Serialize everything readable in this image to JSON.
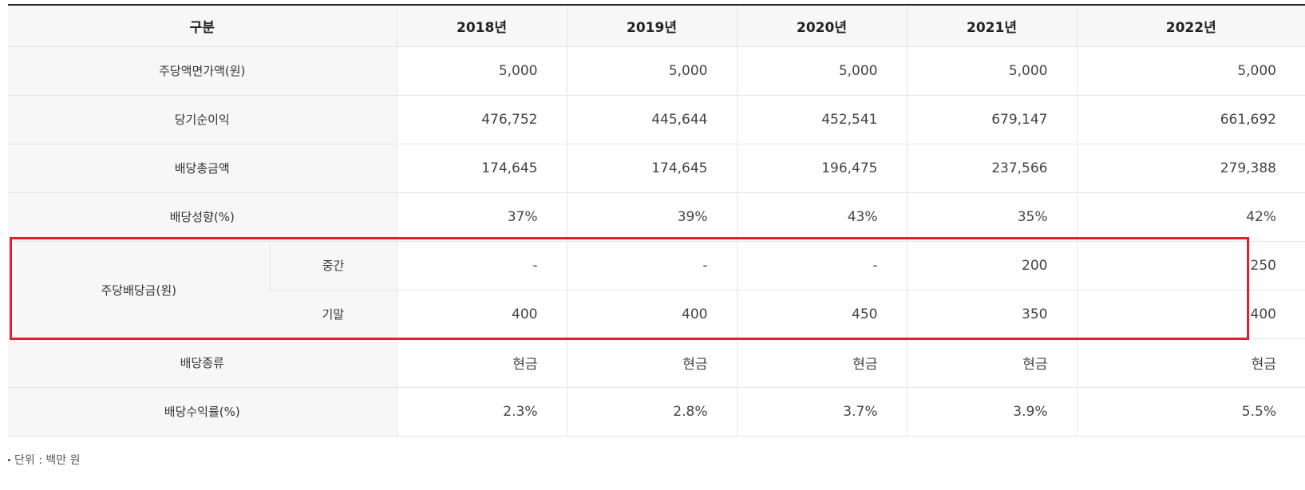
{
  "table": {
    "header": {
      "label": "구분",
      "years": [
        "2018년",
        "2019년",
        "2020년",
        "2021년",
        "2022년"
      ]
    },
    "rows": [
      {
        "label": "주당액면가액(원)",
        "values": [
          "5,000",
          "5,000",
          "5,000",
          "5,000",
          "5,000"
        ]
      },
      {
        "label": "당기순이익",
        "values": [
          "476,752",
          "445,644",
          "452,541",
          "679,147",
          "661,692"
        ]
      },
      {
        "label": "배당총금액",
        "values": [
          "174,645",
          "174,645",
          "196,475",
          "237,566",
          "279,388"
        ]
      },
      {
        "label": "배당성향(%)",
        "values": [
          "37%",
          "39%",
          "43%",
          "35%",
          "42%"
        ]
      }
    ],
    "dps": {
      "label": "주당배당금(원)",
      "interim": {
        "label": "중간",
        "values": [
          "-",
          "-",
          "-",
          "200",
          "250"
        ]
      },
      "final": {
        "label": "기말",
        "values": [
          "400",
          "400",
          "450",
          "350",
          "400"
        ]
      }
    },
    "rows_after": [
      {
        "label": "배당종류",
        "values": [
          "현금",
          "현금",
          "현금",
          "현금",
          "현금"
        ]
      },
      {
        "label": "배당수익률(%)",
        "values": [
          "2.3%",
          "2.8%",
          "3.7%",
          "3.9%",
          "5.5%"
        ]
      }
    ]
  },
  "highlight": {
    "color": "#e3202f"
  },
  "note": "단위 : 백만 원"
}
